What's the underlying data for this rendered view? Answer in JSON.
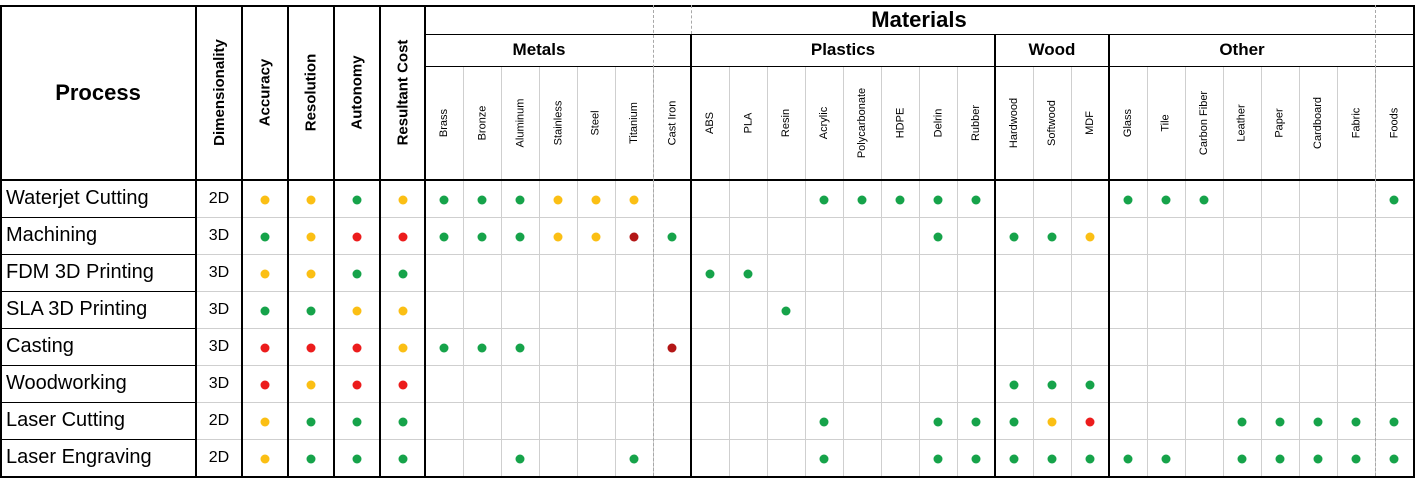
{
  "colors": {
    "green": "#16a34a",
    "yellow": "#fbbf14",
    "red": "#ec1c1c",
    "darkred": "#b31616"
  },
  "headers": {
    "process": "Process",
    "materials": "Materials",
    "properties": [
      "Dimensionality",
      "Accuracy",
      "Resolution",
      "Autonomy",
      "Resultant Cost"
    ]
  },
  "material_groups": [
    {
      "name": "Metals",
      "materials": [
        "Brass",
        "Bronze",
        "Aluminum",
        "Stainless",
        "Steel",
        "Titanium"
      ]
    },
    {
      "name": "",
      "materials": [
        "Cast Iron"
      ]
    },
    {
      "name": "Plastics",
      "materials": [
        "ABS",
        "PLA",
        "Resin",
        "Acrylic",
        "Polycarbonate",
        "HDPE",
        "Delrin",
        "Rubber"
      ]
    },
    {
      "name": "Wood",
      "materials": [
        "Hardwood",
        "Softwood",
        "MDF"
      ]
    },
    {
      "name": "Other",
      "materials": [
        "Glass",
        "Tile",
        "Carbon Fiber",
        "Leather",
        "Paper",
        "Cardboard",
        "Fabric"
      ]
    },
    {
      "name": "",
      "materials": [
        "Foods"
      ]
    }
  ],
  "rows": [
    {
      "process": "Waterjet Cutting",
      "dimensionality": "2D",
      "properties": [
        "y",
        "y",
        "g",
        "y"
      ],
      "materials": [
        "g",
        "g",
        "g",
        "y",
        "y",
        "y",
        "",
        "",
        "",
        "",
        "g",
        "g",
        "g",
        "g",
        "g",
        "",
        "",
        "",
        "g",
        "g",
        "g",
        "",
        "",
        "",
        "",
        "g"
      ]
    },
    {
      "process": "Machining",
      "dimensionality": "3D",
      "properties": [
        "g",
        "y",
        "r",
        "r"
      ],
      "materials": [
        "g",
        "g",
        "g",
        "y",
        "y",
        "d",
        "g",
        "",
        "",
        "",
        "",
        "",
        "",
        "g",
        "",
        "g",
        "g",
        "y",
        "",
        "",
        "",
        "",
        "",
        "",
        "",
        ""
      ]
    },
    {
      "process": "FDM 3D Printing",
      "dimensionality": "3D",
      "properties": [
        "y",
        "y",
        "g",
        "g"
      ],
      "materials": [
        "",
        "",
        "",
        "",
        "",
        "",
        "",
        "g",
        "g",
        "",
        "",
        "",
        "",
        "",
        "",
        "",
        "",
        "",
        "",
        "",
        "",
        "",
        "",
        "",
        "",
        ""
      ]
    },
    {
      "process": "SLA 3D Printing",
      "dimensionality": "3D",
      "properties": [
        "g",
        "g",
        "y",
        "y"
      ],
      "materials": [
        "",
        "",
        "",
        "",
        "",
        "",
        "",
        "",
        "",
        "g",
        "",
        "",
        "",
        "",
        "",
        "",
        "",
        "",
        "",
        "",
        "",
        "",
        "",
        "",
        "",
        ""
      ]
    },
    {
      "process": "Casting",
      "dimensionality": "3D",
      "properties": [
        "r",
        "r",
        "r",
        "y"
      ],
      "materials": [
        "g",
        "g",
        "g",
        "",
        "",
        "",
        "d",
        "",
        "",
        "",
        "",
        "",
        "",
        "",
        "",
        "",
        "",
        "",
        "",
        "",
        "",
        "",
        "",
        "",
        "",
        ""
      ]
    },
    {
      "process": "Woodworking",
      "dimensionality": "3D",
      "properties": [
        "r",
        "y",
        "r",
        "r"
      ],
      "materials": [
        "",
        "",
        "",
        "",
        "",
        "",
        "",
        "",
        "",
        "",
        "",
        "",
        "",
        "",
        "",
        "g",
        "g",
        "g",
        "",
        "",
        "",
        "",
        "",
        "",
        "",
        ""
      ]
    },
    {
      "process": "Laser Cutting",
      "dimensionality": "2D",
      "properties": [
        "y",
        "g",
        "g",
        "g"
      ],
      "materials": [
        "",
        "",
        "",
        "",
        "",
        "",
        "",
        "",
        "",
        "",
        "g",
        "",
        "",
        "g",
        "g",
        "g",
        "y",
        "r",
        "",
        "",
        "",
        "g",
        "g",
        "g",
        "g",
        "g"
      ]
    },
    {
      "process": "Laser Engraving",
      "dimensionality": "2D",
      "properties": [
        "y",
        "g",
        "g",
        "g"
      ],
      "materials": [
        "",
        "",
        "g",
        "",
        "",
        "g",
        "",
        "",
        "",
        "",
        "g",
        "",
        "",
        "g",
        "g",
        "g",
        "g",
        "g",
        "g",
        "g",
        "",
        "g",
        "g",
        "g",
        "g",
        "g"
      ]
    }
  ]
}
